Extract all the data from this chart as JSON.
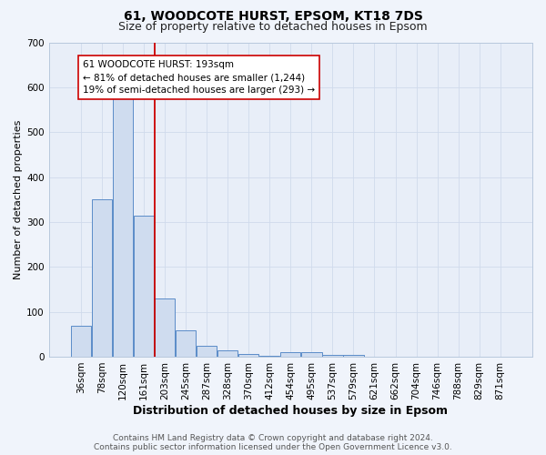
{
  "title_line1": "61, WOODCOTE HURST, EPSOM, KT18 7DS",
  "title_line2": "Size of property relative to detached houses in Epsom",
  "xlabel": "Distribution of detached houses by size in Epsom",
  "ylabel": "Number of detached properties",
  "bar_labels": [
    "36sqm",
    "78sqm",
    "120sqm",
    "161sqm",
    "203sqm",
    "245sqm",
    "287sqm",
    "328sqm",
    "370sqm",
    "412sqm",
    "454sqm",
    "495sqm",
    "537sqm",
    "579sqm",
    "621sqm",
    "662sqm",
    "704sqm",
    "746sqm",
    "788sqm",
    "829sqm",
    "871sqm"
  ],
  "bar_values": [
    68,
    350,
    575,
    315,
    130,
    58,
    25,
    15,
    7,
    2,
    10,
    10,
    4,
    4,
    0,
    0,
    0,
    0,
    0,
    0,
    0
  ],
  "bar_color": "#cfdcef",
  "bar_edge_color": "#5b8cc8",
  "vline_color": "#cc0000",
  "annotation_text": "61 WOODCOTE HURST: 193sqm\n← 81% of detached houses are smaller (1,244)\n19% of semi-detached houses are larger (293) →",
  "annotation_box_color": "#ffffff",
  "annotation_edge_color": "#cc0000",
  "ylim": [
    0,
    700
  ],
  "yticks": [
    0,
    100,
    200,
    300,
    400,
    500,
    600,
    700
  ],
  "grid_color": "#d0daec",
  "bg_color": "#e8eef8",
  "fig_bg_color": "#f0f4fb",
  "footer_text": "Contains HM Land Registry data © Crown copyright and database right 2024.\nContains public sector information licensed under the Open Government Licence v3.0.",
  "title_fontsize": 10,
  "subtitle_fontsize": 9,
  "xlabel_fontsize": 9,
  "ylabel_fontsize": 8,
  "tick_fontsize": 7.5,
  "annotation_fontsize": 7.5,
  "footer_fontsize": 6.5
}
